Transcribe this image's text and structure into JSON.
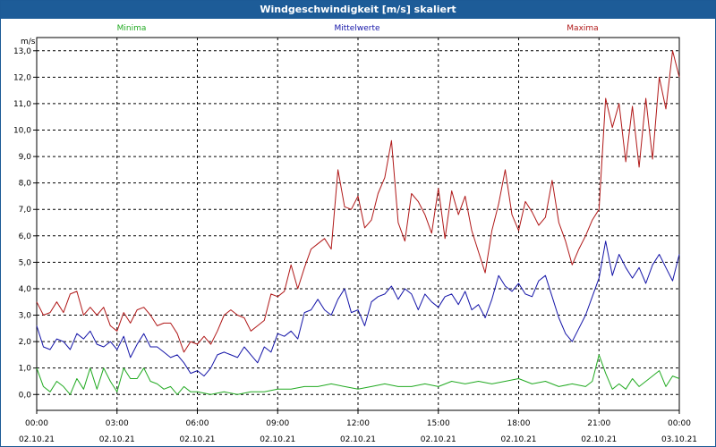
{
  "window": {
    "title": "Windgeschwindigkeit [m/s] skaliert"
  },
  "chart_data": {
    "type": "line",
    "title": "Windgeschwindigkeit [m/s] skaliert",
    "ylabel": "m/s",
    "xlabel": "",
    "ylim": [
      -0.6,
      13.5
    ],
    "xlim": [
      0,
      24
    ],
    "grid": true,
    "yticks": [
      "0,0",
      "1,0",
      "2,0",
      "3,0",
      "4,0",
      "5,0",
      "6,0",
      "7,0",
      "8,0",
      "9,0",
      "10,0",
      "11,0",
      "12,0",
      "13,0"
    ],
    "xticks": [
      {
        "time": "00:00",
        "date": "02.10.21"
      },
      {
        "time": "03:00",
        "date": "02.10.21"
      },
      {
        "time": "06:00",
        "date": "02.10.21"
      },
      {
        "time": "09:00",
        "date": "02.10.21"
      },
      {
        "time": "12:00",
        "date": "02.10.21"
      },
      {
        "time": "15:00",
        "date": "02.10.21"
      },
      {
        "time": "18:00",
        "date": "02.10.21"
      },
      {
        "time": "21:00",
        "date": "02.10.21"
      },
      {
        "time": "00:00",
        "date": "03.10.21"
      }
    ],
    "series": [
      {
        "name": "Minima",
        "color": "#22aa22",
        "points": [
          [
            0,
            1.0
          ],
          [
            0.25,
            0.3
          ],
          [
            0.5,
            0.1
          ],
          [
            0.75,
            0.5
          ],
          [
            1.0,
            0.3
          ],
          [
            1.25,
            0.0
          ],
          [
            1.5,
            0.6
          ],
          [
            1.75,
            0.2
          ],
          [
            2.0,
            1.0
          ],
          [
            2.25,
            0.2
          ],
          [
            2.5,
            1.0
          ],
          [
            2.75,
            0.5
          ],
          [
            3.0,
            0.1
          ],
          [
            3.25,
            1.0
          ],
          [
            3.5,
            0.6
          ],
          [
            3.75,
            0.6
          ],
          [
            4.0,
            1.0
          ],
          [
            4.25,
            0.5
          ],
          [
            4.5,
            0.4
          ],
          [
            4.75,
            0.2
          ],
          [
            5.0,
            0.3
          ],
          [
            5.25,
            0.0
          ],
          [
            5.5,
            0.3
          ],
          [
            5.75,
            0.1
          ],
          [
            6.0,
            0.1
          ],
          [
            6.5,
            0.0
          ],
          [
            7.0,
            0.1
          ],
          [
            7.5,
            0.0
          ],
          [
            8.0,
            0.1
          ],
          [
            8.5,
            0.1
          ],
          [
            9.0,
            0.2
          ],
          [
            9.5,
            0.2
          ],
          [
            10.0,
            0.3
          ],
          [
            10.5,
            0.3
          ],
          [
            11.0,
            0.4
          ],
          [
            11.5,
            0.3
          ],
          [
            12.0,
            0.2
          ],
          [
            12.5,
            0.3
          ],
          [
            13.0,
            0.4
          ],
          [
            13.5,
            0.3
          ],
          [
            14.0,
            0.3
          ],
          [
            14.5,
            0.4
          ],
          [
            15.0,
            0.3
          ],
          [
            15.5,
            0.5
          ],
          [
            16.0,
            0.4
          ],
          [
            16.5,
            0.5
          ],
          [
            17.0,
            0.4
          ],
          [
            17.5,
            0.5
          ],
          [
            18.0,
            0.6
          ],
          [
            18.5,
            0.4
          ],
          [
            19.0,
            0.5
          ],
          [
            19.5,
            0.3
          ],
          [
            20.0,
            0.4
          ],
          [
            20.5,
            0.3
          ],
          [
            20.75,
            0.5
          ],
          [
            21.0,
            1.5
          ],
          [
            21.25,
            0.8
          ],
          [
            21.5,
            0.2
          ],
          [
            21.75,
            0.4
          ],
          [
            22.0,
            0.2
          ],
          [
            22.25,
            0.6
          ],
          [
            22.5,
            0.3
          ],
          [
            22.75,
            0.5
          ],
          [
            23.0,
            0.7
          ],
          [
            23.25,
            0.9
          ],
          [
            23.5,
            0.3
          ],
          [
            23.75,
            0.7
          ],
          [
            24.0,
            0.6
          ]
        ]
      },
      {
        "name": "Mittelwerte",
        "color": "#1515a8",
        "points": [
          [
            0,
            2.6
          ],
          [
            0.25,
            1.8
          ],
          [
            0.5,
            1.7
          ],
          [
            0.75,
            2.1
          ],
          [
            1.0,
            2.0
          ],
          [
            1.25,
            1.7
          ],
          [
            1.5,
            2.3
          ],
          [
            1.75,
            2.1
          ],
          [
            2.0,
            2.4
          ],
          [
            2.25,
            1.9
          ],
          [
            2.5,
            1.8
          ],
          [
            2.75,
            2.0
          ],
          [
            3.0,
            1.7
          ],
          [
            3.25,
            2.2
          ],
          [
            3.5,
            1.4
          ],
          [
            3.75,
            1.9
          ],
          [
            4.0,
            2.3
          ],
          [
            4.25,
            1.8
          ],
          [
            4.5,
            1.8
          ],
          [
            4.75,
            1.6
          ],
          [
            5.0,
            1.4
          ],
          [
            5.25,
            1.5
          ],
          [
            5.5,
            1.2
          ],
          [
            5.75,
            0.8
          ],
          [
            6.0,
            0.9
          ],
          [
            6.25,
            0.7
          ],
          [
            6.5,
            1.0
          ],
          [
            6.75,
            1.5
          ],
          [
            7.0,
            1.6
          ],
          [
            7.25,
            1.5
          ],
          [
            7.5,
            1.4
          ],
          [
            7.75,
            1.8
          ],
          [
            8.0,
            1.5
          ],
          [
            8.25,
            1.2
          ],
          [
            8.5,
            1.8
          ],
          [
            8.75,
            1.6
          ],
          [
            9.0,
            2.3
          ],
          [
            9.25,
            2.2
          ],
          [
            9.5,
            2.4
          ],
          [
            9.75,
            2.1
          ],
          [
            10.0,
            3.1
          ],
          [
            10.25,
            3.2
          ],
          [
            10.5,
            3.6
          ],
          [
            10.75,
            3.2
          ],
          [
            11.0,
            3.0
          ],
          [
            11.25,
            3.6
          ],
          [
            11.5,
            4.0
          ],
          [
            11.75,
            3.1
          ],
          [
            12.0,
            3.2
          ],
          [
            12.25,
            2.6
          ],
          [
            12.5,
            3.5
          ],
          [
            12.75,
            3.7
          ],
          [
            13.0,
            3.8
          ],
          [
            13.25,
            4.1
          ],
          [
            13.5,
            3.6
          ],
          [
            13.75,
            4.0
          ],
          [
            14.0,
            3.8
          ],
          [
            14.25,
            3.2
          ],
          [
            14.5,
            3.8
          ],
          [
            14.75,
            3.5
          ],
          [
            15.0,
            3.3
          ],
          [
            15.25,
            3.7
          ],
          [
            15.5,
            3.8
          ],
          [
            15.75,
            3.4
          ],
          [
            16.0,
            3.9
          ],
          [
            16.25,
            3.2
          ],
          [
            16.5,
            3.4
          ],
          [
            16.75,
            2.9
          ],
          [
            17.0,
            3.6
          ],
          [
            17.25,
            4.5
          ],
          [
            17.5,
            4.1
          ],
          [
            17.75,
            3.9
          ],
          [
            18.0,
            4.2
          ],
          [
            18.25,
            3.8
          ],
          [
            18.5,
            3.7
          ],
          [
            18.75,
            4.3
          ],
          [
            19.0,
            4.5
          ],
          [
            19.25,
            3.7
          ],
          [
            19.5,
            2.9
          ],
          [
            19.75,
            2.3
          ],
          [
            20.0,
            2.0
          ],
          [
            20.25,
            2.5
          ],
          [
            20.5,
            3.0
          ],
          [
            20.75,
            3.7
          ],
          [
            21.0,
            4.4
          ],
          [
            21.25,
            5.8
          ],
          [
            21.5,
            4.5
          ],
          [
            21.75,
            5.3
          ],
          [
            22.0,
            4.8
          ],
          [
            22.25,
            4.4
          ],
          [
            22.5,
            4.8
          ],
          [
            22.75,
            4.2
          ],
          [
            23.0,
            4.9
          ],
          [
            23.25,
            5.3
          ],
          [
            23.5,
            4.8
          ],
          [
            23.75,
            4.3
          ],
          [
            24.0,
            5.3
          ]
        ]
      },
      {
        "name": "Maxima",
        "color": "#b01818",
        "points": [
          [
            0,
            3.5
          ],
          [
            0.25,
            3.0
          ],
          [
            0.5,
            3.1
          ],
          [
            0.75,
            3.5
          ],
          [
            1.0,
            3.1
          ],
          [
            1.25,
            3.8
          ],
          [
            1.5,
            3.9
          ],
          [
            1.75,
            3.0
          ],
          [
            2.0,
            3.3
          ],
          [
            2.25,
            3.0
          ],
          [
            2.5,
            3.3
          ],
          [
            2.75,
            2.6
          ],
          [
            3.0,
            2.4
          ],
          [
            3.25,
            3.1
          ],
          [
            3.5,
            2.7
          ],
          [
            3.75,
            3.2
          ],
          [
            4.0,
            3.3
          ],
          [
            4.25,
            3.0
          ],
          [
            4.5,
            2.6
          ],
          [
            4.75,
            2.7
          ],
          [
            5.0,
            2.7
          ],
          [
            5.25,
            2.3
          ],
          [
            5.5,
            1.6
          ],
          [
            5.75,
            2.0
          ],
          [
            6.0,
            1.9
          ],
          [
            6.25,
            2.2
          ],
          [
            6.5,
            1.9
          ],
          [
            6.75,
            2.4
          ],
          [
            7.0,
            3.0
          ],
          [
            7.25,
            3.2
          ],
          [
            7.5,
            3.0
          ],
          [
            7.75,
            2.9
          ],
          [
            8.0,
            2.4
          ],
          [
            8.25,
            2.6
          ],
          [
            8.5,
            2.8
          ],
          [
            8.75,
            3.8
          ],
          [
            9.0,
            3.7
          ],
          [
            9.25,
            3.9
          ],
          [
            9.5,
            4.9
          ],
          [
            9.75,
            4.0
          ],
          [
            10.0,
            4.8
          ],
          [
            10.25,
            5.5
          ],
          [
            10.5,
            5.7
          ],
          [
            10.75,
            5.9
          ],
          [
            11.0,
            5.5
          ],
          [
            11.25,
            8.5
          ],
          [
            11.5,
            7.1
          ],
          [
            11.75,
            7.0
          ],
          [
            12.0,
            7.5
          ],
          [
            12.25,
            6.3
          ],
          [
            12.5,
            6.6
          ],
          [
            12.75,
            7.6
          ],
          [
            13.0,
            8.2
          ],
          [
            13.25,
            9.6
          ],
          [
            13.5,
            6.5
          ],
          [
            13.75,
            5.8
          ],
          [
            14.0,
            7.6
          ],
          [
            14.25,
            7.3
          ],
          [
            14.5,
            6.8
          ],
          [
            14.75,
            6.1
          ],
          [
            15.0,
            7.8
          ],
          [
            15.25,
            5.9
          ],
          [
            15.5,
            7.7
          ],
          [
            15.75,
            6.8
          ],
          [
            16.0,
            7.5
          ],
          [
            16.25,
            6.2
          ],
          [
            16.5,
            5.4
          ],
          [
            16.75,
            4.6
          ],
          [
            17.0,
            6.2
          ],
          [
            17.25,
            7.2
          ],
          [
            17.5,
            8.5
          ],
          [
            17.75,
            6.8
          ],
          [
            18.0,
            6.2
          ],
          [
            18.25,
            7.3
          ],
          [
            18.5,
            6.9
          ],
          [
            18.75,
            6.4
          ],
          [
            19.0,
            6.7
          ],
          [
            19.25,
            8.1
          ],
          [
            19.5,
            6.5
          ],
          [
            19.75,
            5.8
          ],
          [
            20.0,
            4.9
          ],
          [
            20.25,
            5.5
          ],
          [
            20.5,
            6.0
          ],
          [
            20.75,
            6.6
          ],
          [
            21.0,
            7.0
          ],
          [
            21.25,
            11.2
          ],
          [
            21.5,
            10.1
          ],
          [
            21.75,
            11.0
          ],
          [
            22.0,
            8.8
          ],
          [
            22.25,
            10.9
          ],
          [
            22.5,
            8.6
          ],
          [
            22.75,
            11.2
          ],
          [
            23.0,
            8.9
          ],
          [
            23.25,
            12.0
          ],
          [
            23.5,
            10.8
          ],
          [
            23.75,
            13.0
          ],
          [
            24.0,
            12.0
          ]
        ]
      }
    ]
  }
}
